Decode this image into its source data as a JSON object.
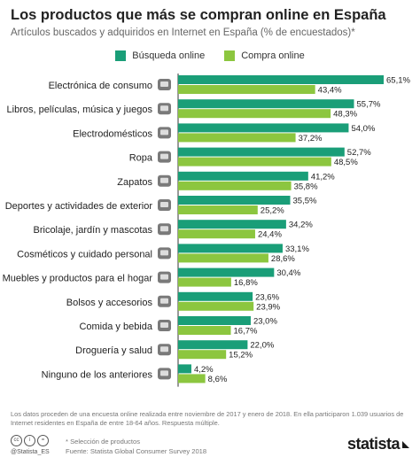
{
  "header": {
    "title": "Los productos que más se compran online en España",
    "subtitle": "Artículos buscados y adquiridos en Internet en España (% de encuestados)*"
  },
  "colors": {
    "search": "#1a9e78",
    "buy": "#8cc63f",
    "text": "#222222"
  },
  "chart_data": {
    "type": "bar",
    "orientation": "horizontal",
    "categories": [
      "Electrónica de consumo",
      "Libros, películas, música y juegos",
      "Electrodomésticos",
      "Ropa",
      "Zapatos",
      "Deportes y actividades de exterior",
      "Bricolaje, jardín y mascotas",
      "Cosméticos y cuidado personal",
      "Muebles y productos para el hogar",
      "Bolsos y accesorios",
      "Comida y bebida",
      "Droguería y salud",
      "Ninguno de los anteriores"
    ],
    "icons": [
      "laptop-icon",
      "books-icon",
      "mixer-icon",
      "jacket-icon",
      "shoe-icon",
      "soccer-ball-icon",
      "lawnmower-icon",
      "lipstick-icon",
      "sofa-icon",
      "handbag-icon",
      "burger-icon",
      "heart-pulse-icon",
      "shopping-basket-icon"
    ],
    "series": [
      {
        "name": "Búsqueda online",
        "values": [
          65.1,
          55.7,
          54.0,
          52.7,
          41.2,
          35.5,
          34.2,
          33.1,
          30.4,
          23.6,
          23.0,
          22.0,
          4.2
        ],
        "labels": [
          "65,1%",
          "55,7%",
          "54,0%",
          "52,7%",
          "41,2%",
          "35,5%",
          "34,2%",
          "33,1%",
          "30,4%",
          "23,6%",
          "23,0%",
          "22,0%",
          "4,2%"
        ]
      },
      {
        "name": "Compra online",
        "values": [
          43.4,
          48.3,
          37.2,
          48.5,
          35.8,
          25.2,
          24.4,
          28.6,
          16.8,
          23.9,
          16.7,
          15.2,
          8.6
        ],
        "labels": [
          "43,4%",
          "48,3%",
          "37,2%",
          "48,5%",
          "35,8%",
          "25,2%",
          "24,4%",
          "28,6%",
          "16,8%",
          "23,9%",
          "16,7%",
          "15,2%",
          "8,6%"
        ]
      }
    ],
    "xlim": [
      0,
      70
    ]
  },
  "footer": {
    "note": "Los datos proceden de una encuesta online realizada entre noviembre de 2017 y enero de 2018. En ella participaron 1.039 usuarios de Internet residentes en España de entre 18-64 años. Respuesta múltiple.",
    "handle": "@Statista_ES",
    "selection": "* Selección de productos",
    "source": "Fuente: Statista Global Consumer Survey 2018",
    "brand": "statista"
  }
}
